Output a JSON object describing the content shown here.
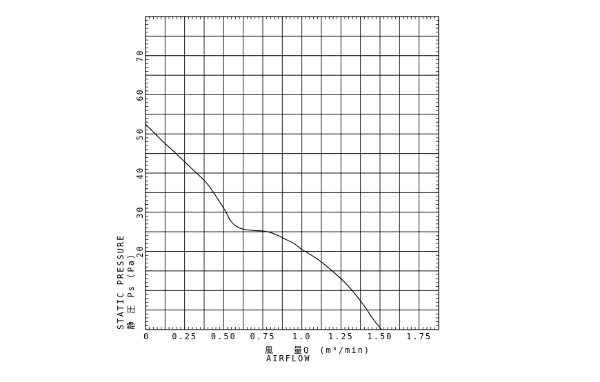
{
  "chart_data": {
    "type": "line",
    "title": "",
    "xlabel_jp": "風　　量Q　(m³/min)",
    "xlabel_en": "AIRFLOW",
    "ylabel_en": "STATIC PRESSURE",
    "ylabel_jp": "静 圧 Ps (Pa)",
    "xlim": [
      0,
      1.875
    ],
    "ylim": [
      0,
      80
    ],
    "x_ticks": [
      0,
      0.25,
      0.5,
      0.75,
      1.0,
      1.25,
      1.5,
      1.75
    ],
    "x_tick_labels": [
      "0",
      "0.25",
      "0.50",
      "0.75",
      "1.0",
      "1.25",
      "1.50",
      "1.75"
    ],
    "y_ticks": [
      20,
      30,
      40,
      50,
      60,
      70
    ],
    "y_tick_labels": [
      "20",
      "30",
      "40",
      "50",
      "60",
      "70"
    ],
    "grid": true,
    "series": [
      {
        "x": [
          0,
          0.1,
          0.2,
          0.3,
          0.4,
          0.5,
          0.55,
          0.6,
          0.65,
          0.7,
          0.75,
          0.8,
          0.85,
          0.9,
          0.95,
          1.0,
          1.1,
          1.2,
          1.3,
          1.4,
          1.45,
          1.5,
          1.55,
          1.58
        ],
        "y": [
          52.5,
          48.5,
          44.8,
          41,
          37,
          31,
          27.5,
          26,
          25.5,
          25.3,
          25.2,
          24.8,
          24,
          23,
          22,
          20.5,
          18,
          14.8,
          11,
          6,
          3,
          0.5,
          -2,
          -3
        ]
      }
    ]
  }
}
